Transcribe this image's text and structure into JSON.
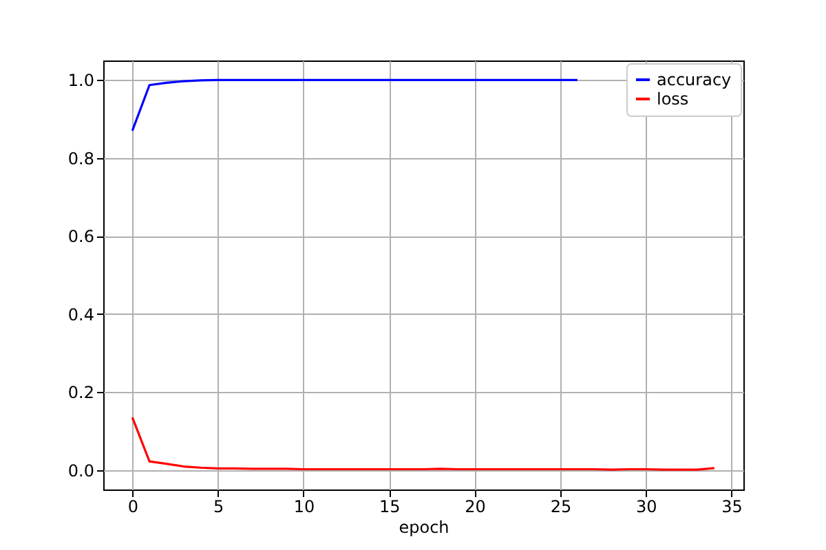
{
  "chart_data": {
    "type": "line",
    "xlabel": "epoch",
    "x": [
      0,
      1,
      2,
      3,
      4,
      5,
      6,
      7,
      8,
      9,
      10,
      11,
      12,
      13,
      14,
      15,
      16,
      17,
      18,
      19,
      20,
      21,
      22,
      23,
      24,
      25,
      26,
      27,
      28,
      29,
      30,
      31,
      32,
      33,
      34
    ],
    "series": [
      {
        "name": "accuracy",
        "color": "#0000ff",
        "values": [
          0.87,
          0.987,
          0.993,
          0.997,
          0.999,
          1.0,
          1.0,
          1.0,
          1.0,
          1.0,
          1.0,
          1.0,
          1.0,
          1.0,
          1.0,
          1.0,
          1.0,
          1.0,
          1.0,
          1.0,
          1.0,
          1.0,
          1.0,
          1.0,
          1.0,
          1.0,
          1.0,
          null,
          null,
          null,
          null,
          null,
          null,
          null,
          null
        ]
      },
      {
        "name": "loss",
        "color": "#ff0000",
        "values": [
          0.135,
          0.022,
          0.016,
          0.009,
          0.006,
          0.004,
          0.004,
          0.003,
          0.003,
          0.003,
          0.002,
          0.002,
          0.002,
          0.002,
          0.002,
          0.002,
          0.002,
          0.002,
          0.003,
          0.002,
          0.002,
          0.002,
          0.002,
          0.002,
          0.002,
          0.002,
          0.002,
          0.002,
          0.001,
          0.002,
          0.002,
          0.001,
          0.001,
          0.001,
          0.005
        ]
      }
    ],
    "xlim": [
      -1.7,
      35.7
    ],
    "xticks": [
      0,
      5,
      10,
      15,
      20,
      25,
      30,
      35
    ],
    "ylim": [
      -0.05,
      1.05
    ],
    "yticks": [
      {
        "value": 0,
        "label": "0.0"
      },
      {
        "value": 0.2,
        "label": "0.2"
      },
      {
        "value": 0.4,
        "label": "0.4"
      },
      {
        "value": 0.6,
        "label": "0.6"
      },
      {
        "value": 0.8,
        "label": "0.8"
      },
      {
        "value": 1.0,
        "label": "1.0"
      }
    ],
    "grid": true,
    "legend": "top right",
    "marker": "none",
    "line_style": "solid"
  }
}
